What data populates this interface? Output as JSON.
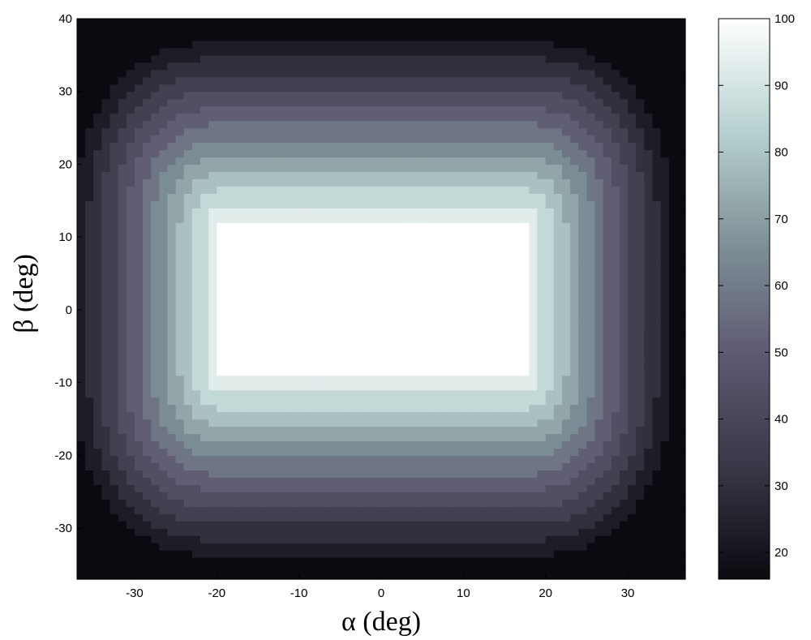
{
  "chart_data": {
    "type": "heatmap",
    "title": "",
    "xlabel": "α   (deg)",
    "ylabel": "β   (deg)",
    "xlim": [
      -37,
      37
    ],
    "ylim": [
      -37,
      40
    ],
    "x_ticks": [
      -30,
      -20,
      -10,
      0,
      10,
      20,
      30
    ],
    "x_tick_labels": [
      "-30",
      "-20",
      "-10",
      "0",
      "10",
      "20",
      "30"
    ],
    "y_ticks": [
      -30,
      -20,
      -10,
      0,
      10,
      20,
      30,
      40
    ],
    "y_tick_labels": [
      "-30",
      "-20",
      "-10",
      "0",
      "10",
      "20",
      "30",
      "40"
    ],
    "plateau": {
      "x_range": [
        -19,
        17
      ],
      "y_range": [
        -8,
        11
      ],
      "value": 100
    },
    "value_range": [
      16,
      100
    ],
    "colorbar": {
      "ticks": [
        20,
        30,
        40,
        50,
        60,
        70,
        80,
        90,
        100
      ],
      "tick_labels": [
        "20",
        "30",
        "40",
        "50",
        "60",
        "70",
        "80",
        "90",
        "100"
      ],
      "range": [
        16,
        100
      ],
      "colormap": "bone",
      "colors": {
        "low": "#0a0a10",
        "mid_low": "#3b3747",
        "mid": "#5d5972",
        "mid_high": "#7f9197",
        "high": "#b7d1d0",
        "top": "#ffffff"
      }
    }
  }
}
